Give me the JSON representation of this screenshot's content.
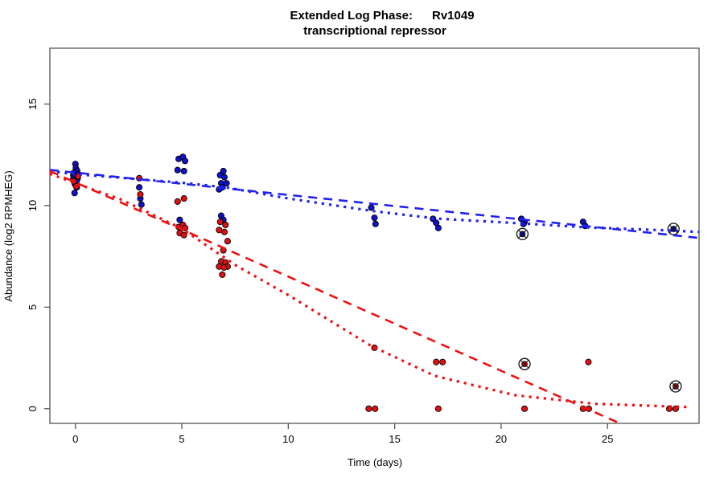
{
  "figure": {
    "title_left": "Extended Log Phase:",
    "title_right": "Rv1049",
    "subtitle": "transcriptional repressor",
    "xlabel": "Time  (days)",
    "ylabel": "Abundance  (log2 RPMHEG)"
  },
  "chart_data": {
    "type": "scatter",
    "title": "Extended Log Phase: Rv1049",
    "subtitle": "transcriptional repressor",
    "xlabel": "Time (days)",
    "ylabel": "Abundance (log2 RPMHEG)",
    "xlim": [
      -1.2,
      29.3
    ],
    "ylim": [
      -0.72,
      17.75
    ],
    "xticks": [
      0,
      5,
      10,
      15,
      20,
      25
    ],
    "yticks": [
      0,
      5,
      10,
      15
    ],
    "grid": false,
    "legend": "none",
    "colors": {
      "blue_points": "#1111cc",
      "red_points": "#dd1111",
      "blue_fit": "#2222ee",
      "red_fit": "#ee1111",
      "axis": "#555555",
      "marked_outline": "#111111"
    },
    "series": [
      {
        "name": "blue-condition",
        "color": "#1111cc",
        "points": [
          [
            -0.1,
            11.5
          ],
          [
            0.0,
            12.05
          ],
          [
            0.02,
            11.85
          ],
          [
            0.08,
            11.72
          ],
          [
            -0.07,
            11.62
          ],
          [
            0.12,
            11.55
          ],
          [
            0.0,
            11.45
          ],
          [
            0.1,
            11.33
          ],
          [
            -0.12,
            11.28
          ],
          [
            0.05,
            11.18
          ],
          [
            -0.02,
            11.05
          ],
          [
            0.06,
            10.9
          ],
          [
            -0.04,
            10.62
          ],
          [
            3.0,
            10.9
          ],
          [
            3.05,
            10.35
          ],
          [
            3.1,
            10.05
          ],
          [
            4.85,
            12.3
          ],
          [
            5.05,
            12.4
          ],
          [
            5.15,
            12.2
          ],
          [
            4.8,
            11.75
          ],
          [
            5.1,
            11.7
          ],
          [
            4.9,
            9.3
          ],
          [
            6.95,
            11.7
          ],
          [
            6.8,
            11.5
          ],
          [
            7.0,
            11.4
          ],
          [
            6.85,
            11.1
          ],
          [
            7.1,
            11.1
          ],
          [
            6.9,
            10.9
          ],
          [
            6.75,
            10.8
          ],
          [
            6.85,
            9.5
          ],
          [
            6.95,
            9.3
          ],
          [
            13.9,
            9.9
          ],
          [
            14.05,
            9.4
          ],
          [
            14.1,
            9.1
          ],
          [
            16.8,
            9.35
          ],
          [
            16.95,
            9.15
          ],
          [
            17.05,
            8.9
          ],
          [
            20.95,
            9.35
          ],
          [
            21.1,
            9.2
          ],
          [
            21.05,
            9.1
          ],
          [
            23.85,
            9.2
          ],
          [
            23.95,
            9.0
          ]
        ],
        "marked_points": [
          [
            21.0,
            8.6
          ],
          [
            28.1,
            8.85
          ]
        ]
      },
      {
        "name": "red-condition",
        "color": "#dd1111",
        "points": [
          [
            0.12,
            11.45
          ],
          [
            -0.08,
            11.2
          ],
          [
            0.04,
            10.95
          ],
          [
            3.0,
            11.35
          ],
          [
            3.05,
            10.55
          ],
          [
            4.8,
            10.2
          ],
          [
            5.1,
            10.35
          ],
          [
            4.85,
            8.95
          ],
          [
            5.05,
            9.05
          ],
          [
            5.15,
            8.9
          ],
          [
            4.9,
            8.65
          ],
          [
            5.1,
            8.55
          ],
          [
            6.8,
            9.2
          ],
          [
            7.05,
            9.05
          ],
          [
            6.75,
            8.8
          ],
          [
            7.0,
            8.7
          ],
          [
            7.15,
            8.25
          ],
          [
            6.95,
            7.8
          ],
          [
            6.85,
            7.25
          ],
          [
            7.05,
            7.2
          ],
          [
            6.75,
            7.0
          ],
          [
            7.15,
            7.0
          ],
          [
            6.98,
            6.95
          ],
          [
            6.9,
            6.6
          ],
          [
            14.05,
            3.0
          ],
          [
            13.78,
            0.0
          ],
          [
            14.08,
            0.0
          ],
          [
            16.95,
            2.3
          ],
          [
            17.25,
            2.3
          ],
          [
            17.05,
            0.0
          ],
          [
            21.1,
            0.0
          ],
          [
            24.1,
            2.3
          ],
          [
            23.85,
            0.0
          ],
          [
            24.12,
            0.0
          ],
          [
            27.9,
            0.0
          ],
          [
            28.2,
            0.0
          ]
        ],
        "marked_points": [
          [
            21.1,
            2.2
          ],
          [
            28.2,
            1.1
          ]
        ]
      }
    ],
    "fits": [
      {
        "name": "blue-linear-fit",
        "color": "#2222ee",
        "style": "dashed",
        "points": [
          [
            -1.2,
            11.76
          ],
          [
            29.3,
            8.41
          ]
        ]
      },
      {
        "name": "blue-smooth-fit",
        "color": "#2222ee",
        "style": "dotted",
        "points": [
          [
            -1.2,
            11.69
          ],
          [
            0.0,
            11.55
          ],
          [
            2.15,
            11.37
          ],
          [
            4.98,
            11.13
          ],
          [
            7.06,
            10.9
          ],
          [
            10.08,
            10.34
          ],
          [
            14.0,
            9.73
          ],
          [
            16.98,
            9.36
          ],
          [
            21.02,
            9.12
          ],
          [
            24.0,
            8.93
          ],
          [
            28.08,
            8.77
          ],
          [
            29.3,
            8.7
          ]
        ]
      },
      {
        "name": "red-linear-fit",
        "color": "#ee1111",
        "style": "dashed",
        "points": [
          [
            -1.2,
            11.7
          ],
          [
            26.4,
            -1.1
          ]
        ]
      },
      {
        "name": "red-smooth-fit",
        "color": "#ee1111",
        "style": "dotted",
        "points": [
          [
            -1.2,
            11.57
          ],
          [
            0.0,
            11.1
          ],
          [
            2.15,
            10.3
          ],
          [
            4.98,
            8.88
          ],
          [
            7.55,
            7.05
          ],
          [
            10.08,
            5.55
          ],
          [
            13.85,
            3.12
          ],
          [
            16.87,
            1.62
          ],
          [
            20.64,
            0.67
          ],
          [
            24.42,
            0.24
          ],
          [
            28.9,
            0.08
          ]
        ]
      }
    ]
  }
}
